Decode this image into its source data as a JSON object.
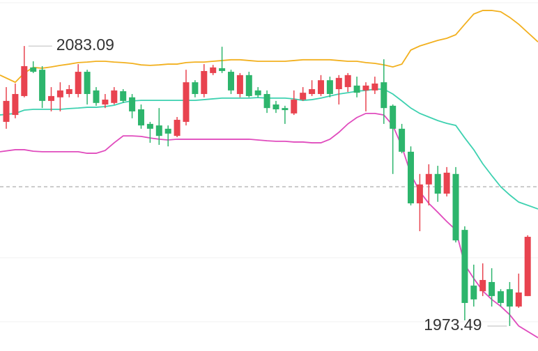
{
  "chart_data": {
    "type": "candlestick",
    "ylim": [
      1963.7,
      2101.1
    ],
    "up_color": "#e8434f",
    "down_color": "#2db56c",
    "max_label": "2083.09",
    "min_label": "1973.49",
    "reference_line": 2028.0,
    "candles": {
      "open": [
        2053.4,
        2056.1,
        2063.5,
        2074.7,
        2073.8,
        2061.6,
        2063.0,
        2064.3,
        2064.3,
        2073.0,
        2065.7,
        2060.2,
        2060.8,
        2065.4,
        2063.0,
        2058.3,
        2052.6,
        2052.0,
        2050.7,
        2047.9,
        2053.4,
        2068.9,
        2064.3,
        2072.5,
        2074.4,
        2073.0,
        2064.3,
        2071.7,
        2065.7,
        2064.3,
        2060.2,
        2058.8,
        2056.7,
        2062.1,
        2064.3,
        2064.3,
        2069.7,
        2066.2,
        2067.0,
        2067.6,
        2065.7,
        2065.7,
        2068.9,
        2059.7,
        2050.7,
        2041.7,
        2021.5,
        2028.9,
        2033.0,
        2025.3,
        2033.0,
        2011.1,
        1989.3,
        1987.1,
        1990.7,
        1987.1,
        1987.9,
        1981.1,
        1985.2
      ],
      "high": [
        2067.0,
        2068.4,
        2083.09,
        2077.1,
        2075.2,
        2067.0,
        2068.9,
        2067.8,
        2076.0,
        2073.8,
        2067.0,
        2064.3,
        2067.0,
        2066.2,
        2064.3,
        2060.2,
        2053.4,
        2058.8,
        2052.0,
        2055.3,
        2073.8,
        2069.7,
        2076.0,
        2075.7,
        2082.8,
        2073.8,
        2072.5,
        2073.0,
        2067.0,
        2065.7,
        2061.6,
        2059.7,
        2065.7,
        2067.0,
        2069.7,
        2071.7,
        2071.1,
        2071.7,
        2072.5,
        2071.1,
        2068.9,
        2071.1,
        2077.9,
        2060.2,
        2052.6,
        2043.8,
        2033.0,
        2036.8,
        2036.2,
        2035.7,
        2035.7,
        2012.5,
        1997.5,
        1998.0,
        1996.1,
        1987.9,
        1990.7,
        1994.0,
        2009.0
      ],
      "low": [
        2050.7,
        2054.8,
        2063.0,
        2072.5,
        2058.8,
        2057.5,
        2057.5,
        2063.0,
        2063.0,
        2060.2,
        2059.7,
        2058.8,
        2060.2,
        2060.8,
        2054.8,
        2050.7,
        2045.2,
        2044.4,
        2043.8,
        2047.4,
        2052.0,
        2063.0,
        2063.0,
        2071.7,
        2072.5,
        2064.3,
        2063.0,
        2063.0,
        2063.0,
        2056.9,
        2056.9,
        2052.6,
        2056.1,
        2061.6,
        2063.5,
        2063.5,
        2063.0,
        2060.2,
        2065.1,
        2063.0,
        2057.5,
        2064.3,
        2052.6,
        2033.0,
        2041.1,
        2020.7,
        2010.6,
        2020.7,
        2022.1,
        2024.2,
        2006.2,
        1975.7,
        1981.1,
        1985.2,
        1981.1,
        1981.1,
        1973.49,
        1980.6,
        1985.2
      ],
      "close": [
        2061.6,
        2064.3,
        2075.2,
        2073.0,
        2061.6,
        2063.5,
        2065.7,
        2066.2,
        2073.0,
        2064.3,
        2060.8,
        2062.1,
        2065.7,
        2061.6,
        2057.5,
        2052.0,
        2050.7,
        2047.9,
        2048.8,
        2054.2,
        2068.9,
        2064.3,
        2073.3,
        2074.7,
        2073.3,
        2065.7,
        2071.7,
        2063.5,
        2063.8,
        2058.8,
        2058.3,
        2058.0,
        2062.1,
        2064.8,
        2066.2,
        2069.7,
        2064.3,
        2070.6,
        2071.7,
        2064.8,
        2067.6,
        2068.4,
        2058.8,
        2050.7,
        2041.7,
        2021.5,
        2028.9,
        2033.0,
        2025.3,
        2033.5,
        2007.0,
        1982.5,
        1983.9,
        1991.5,
        1985.2,
        1982.5,
        1981.1,
        1986.6,
        2008.4
      ]
    },
    "bands": [
      {
        "color": "#f2b01e",
        "values": [
          2071.7,
          2068.9,
          2072.5,
          2074.7,
          2074.4,
          2074.9,
          2075.5,
          2076.0,
          2076.6,
          2076.8,
          2077.1,
          2077.1,
          2076.8,
          2076.6,
          2076.3,
          2075.7,
          2075.5,
          2075.7,
          2076.0,
          2076.0,
          2076.6,
          2076.8,
          2076.8,
          2077.1,
          2077.4,
          2077.7,
          2077.7,
          2077.4,
          2077.1,
          2077.1,
          2077.1,
          2077.1,
          2077.4,
          2077.7,
          2077.7,
          2077.7,
          2077.7,
          2077.4,
          2077.1,
          2077.1,
          2076.6,
          2076.3,
          2075.7,
          2074.9,
          2076.0,
          2081.5,
          2083.1,
          2084.2,
          2085.3,
          2086.1,
          2087.5,
          2091.6,
          2095.6,
          2097.0,
          2097.0,
          2096.5,
          2094.3,
          2091.6,
          2084.7
        ]
      },
      {
        "color": "#3dd1b0",
        "values": [
          2056.1,
          2056.7,
          2058.0,
          2058.3,
          2058.3,
          2058.3,
          2058.3,
          2058.6,
          2058.8,
          2059.1,
          2059.1,
          2059.4,
          2059.9,
          2061.0,
          2061.6,
          2061.8,
          2061.8,
          2061.8,
          2061.8,
          2061.8,
          2061.8,
          2061.8,
          2062.1,
          2062.4,
          2062.7,
          2062.7,
          2062.7,
          2062.7,
          2062.9,
          2062.7,
          2062.7,
          2062.7,
          2062.4,
          2061.8,
          2062.1,
          2062.7,
          2063.5,
          2064.3,
          2064.8,
          2065.4,
          2065.7,
          2066.2,
          2066.2,
          2064.3,
          2061.6,
          2058.8,
          2056.7,
          2055.3,
          2053.9,
          2052.8,
          2052.0,
          2047.1,
          2042.5,
          2037.0,
          2032.4,
          2028.0,
          2024.8,
          2022.0,
          2019.3
        ]
      },
      {
        "color": "#e04bbd",
        "values": [
          2041.7,
          2042.5,
          2042.5,
          2041.9,
          2041.7,
          2041.7,
          2041.7,
          2041.7,
          2041.7,
          2041.1,
          2041.1,
          2042.2,
          2045.2,
          2047.9,
          2047.9,
          2047.7,
          2047.1,
          2046.6,
          2046.3,
          2046.6,
          2046.6,
          2046.6,
          2046.6,
          2046.6,
          2046.6,
          2046.6,
          2046.6,
          2046.6,
          2046.3,
          2046.0,
          2045.8,
          2045.8,
          2045.5,
          2045.5,
          2045.2,
          2045.2,
          2046.6,
          2049.3,
          2052.6,
          2055.1,
          2056.7,
          2056.7,
          2056.1,
          2052.0,
          2043.8,
          2032.9,
          2026.1,
          2021.5,
          2018.0,
          2014.4,
          2011.1,
          1997.5,
          1992.1,
          1987.2,
          1983.9,
          1981.2,
          1977.9,
          1973.5,
          1968.9
        ]
      }
    ]
  }
}
